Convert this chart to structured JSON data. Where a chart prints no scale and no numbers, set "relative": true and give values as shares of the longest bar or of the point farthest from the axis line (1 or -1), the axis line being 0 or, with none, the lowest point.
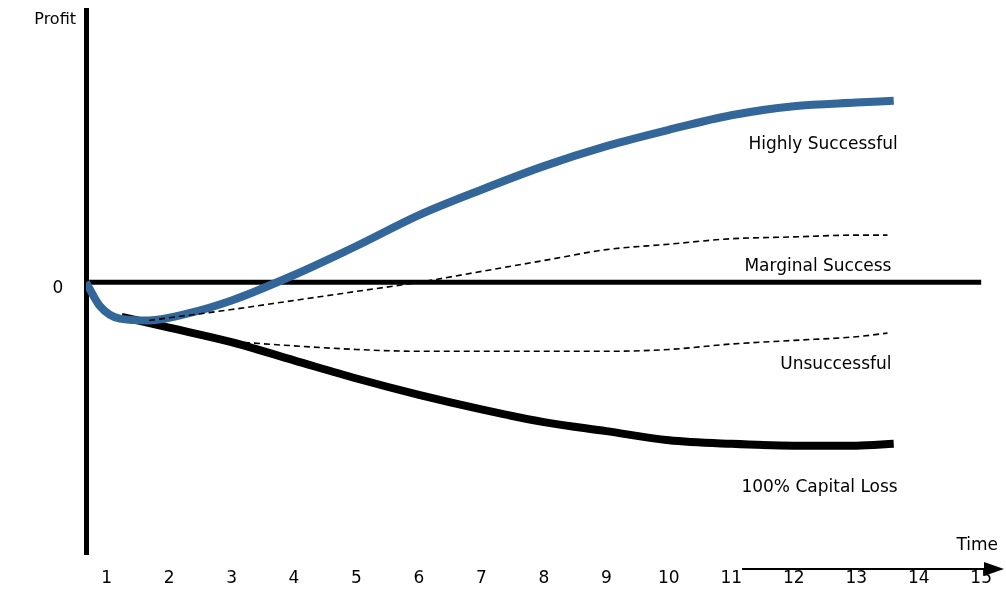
{
  "chart_data": {
    "type": "line",
    "relative": true,
    "xlabel": "Time",
    "ylabel": "Profit",
    "xlim": [
      0.67,
      15
    ],
    "xticks": [
      1,
      2,
      3,
      4,
      5,
      6,
      7,
      8,
      9,
      10,
      11,
      12,
      13,
      14,
      15
    ],
    "annotations": [
      "0"
    ],
    "ref_lines": [
      {
        "axis": "y",
        "value": 0,
        "color": "#000000"
      }
    ],
    "grid": false,
    "legend": false,
    "marker": "none",
    "series": [
      {
        "name": "Highly Successful",
        "color": "#336699",
        "line_style": "solid",
        "x": [
          0.67,
          0.89,
          1.21,
          1.68,
          2.32,
          3,
          4,
          5,
          6,
          7,
          8,
          9,
          10,
          11,
          12,
          13,
          13.6
        ],
        "values": [
          0,
          -0.13,
          -0.2,
          -0.21,
          -0.17,
          -0.1,
          0.04,
          0.2,
          0.37,
          0.51,
          0.64,
          0.75,
          0.84,
          0.92,
          0.97,
          0.99,
          1.0
        ]
      },
      {
        "name": "Marginal Success",
        "color": "#000000",
        "line_style": "dashed",
        "x": [
          1.68,
          3,
          4,
          5,
          6,
          7,
          8,
          9,
          10,
          11,
          12,
          13,
          13.5
        ],
        "values": [
          -0.21,
          -0.15,
          -0.1,
          -0.05,
          0,
          0.06,
          0.12,
          0.18,
          0.21,
          0.24,
          0.25,
          0.26,
          0.26
        ]
      },
      {
        "name": "Unsuccessful",
        "color": "#000000",
        "line_style": "dashed",
        "x": [
          2.72,
          4,
          5,
          6,
          7,
          8,
          9,
          10,
          11,
          12,
          13,
          13.5
        ],
        "values": [
          -0.32,
          -0.35,
          -0.37,
          -0.38,
          -0.38,
          -0.38,
          -0.38,
          -0.37,
          -0.34,
          -0.32,
          -0.3,
          -0.28
        ]
      },
      {
        "name": "100% Capital Loss",
        "color": "#000000",
        "line_style": "solid",
        "x": [
          1.24,
          2,
          3,
          4,
          5,
          6,
          7,
          8,
          9,
          10,
          11,
          12,
          13,
          13.6
        ],
        "values": [
          -0.19,
          -0.25,
          -0.33,
          -0.43,
          -0.53,
          -0.62,
          -0.7,
          -0.77,
          -0.82,
          -0.87,
          -0.89,
          -0.9,
          -0.9,
          -0.89
        ]
      }
    ]
  }
}
